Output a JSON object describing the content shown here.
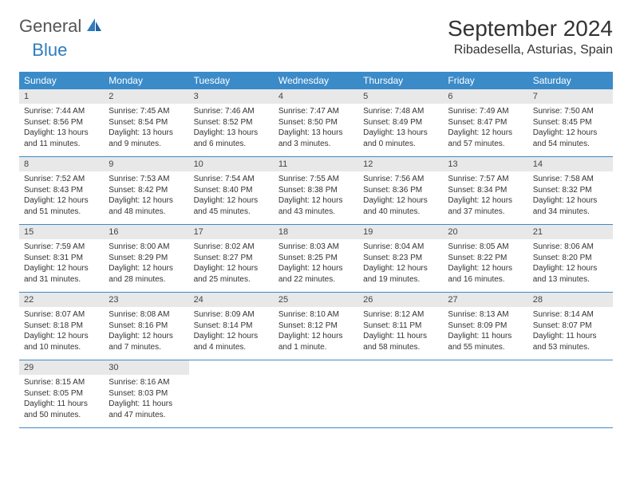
{
  "logo": {
    "general": "General",
    "blue": "Blue"
  },
  "title": "September 2024",
  "location": "Ribadesella, Asturias, Spain",
  "colors": {
    "header_bg": "#3b8bc9",
    "header_text": "#ffffff",
    "daynum_bg": "#e8e8e8",
    "text": "#333333",
    "logo_gray": "#555555",
    "logo_blue": "#2e7cc0",
    "row_border": "#3b8bc9"
  },
  "day_headers": [
    "Sunday",
    "Monday",
    "Tuesday",
    "Wednesday",
    "Thursday",
    "Friday",
    "Saturday"
  ],
  "weeks": [
    [
      {
        "n": "1",
        "sr": "7:44 AM",
        "ss": "8:56 PM",
        "dl": "13 hours and 11 minutes."
      },
      {
        "n": "2",
        "sr": "7:45 AM",
        "ss": "8:54 PM",
        "dl": "13 hours and 9 minutes."
      },
      {
        "n": "3",
        "sr": "7:46 AM",
        "ss": "8:52 PM",
        "dl": "13 hours and 6 minutes."
      },
      {
        "n": "4",
        "sr": "7:47 AM",
        "ss": "8:50 PM",
        "dl": "13 hours and 3 minutes."
      },
      {
        "n": "5",
        "sr": "7:48 AM",
        "ss": "8:49 PM",
        "dl": "13 hours and 0 minutes."
      },
      {
        "n": "6",
        "sr": "7:49 AM",
        "ss": "8:47 PM",
        "dl": "12 hours and 57 minutes."
      },
      {
        "n": "7",
        "sr": "7:50 AM",
        "ss": "8:45 PM",
        "dl": "12 hours and 54 minutes."
      }
    ],
    [
      {
        "n": "8",
        "sr": "7:52 AM",
        "ss": "8:43 PM",
        "dl": "12 hours and 51 minutes."
      },
      {
        "n": "9",
        "sr": "7:53 AM",
        "ss": "8:42 PM",
        "dl": "12 hours and 48 minutes."
      },
      {
        "n": "10",
        "sr": "7:54 AM",
        "ss": "8:40 PM",
        "dl": "12 hours and 45 minutes."
      },
      {
        "n": "11",
        "sr": "7:55 AM",
        "ss": "8:38 PM",
        "dl": "12 hours and 43 minutes."
      },
      {
        "n": "12",
        "sr": "7:56 AM",
        "ss": "8:36 PM",
        "dl": "12 hours and 40 minutes."
      },
      {
        "n": "13",
        "sr": "7:57 AM",
        "ss": "8:34 PM",
        "dl": "12 hours and 37 minutes."
      },
      {
        "n": "14",
        "sr": "7:58 AM",
        "ss": "8:32 PM",
        "dl": "12 hours and 34 minutes."
      }
    ],
    [
      {
        "n": "15",
        "sr": "7:59 AM",
        "ss": "8:31 PM",
        "dl": "12 hours and 31 minutes."
      },
      {
        "n": "16",
        "sr": "8:00 AM",
        "ss": "8:29 PM",
        "dl": "12 hours and 28 minutes."
      },
      {
        "n": "17",
        "sr": "8:02 AM",
        "ss": "8:27 PM",
        "dl": "12 hours and 25 minutes."
      },
      {
        "n": "18",
        "sr": "8:03 AM",
        "ss": "8:25 PM",
        "dl": "12 hours and 22 minutes."
      },
      {
        "n": "19",
        "sr": "8:04 AM",
        "ss": "8:23 PM",
        "dl": "12 hours and 19 minutes."
      },
      {
        "n": "20",
        "sr": "8:05 AM",
        "ss": "8:22 PM",
        "dl": "12 hours and 16 minutes."
      },
      {
        "n": "21",
        "sr": "8:06 AM",
        "ss": "8:20 PM",
        "dl": "12 hours and 13 minutes."
      }
    ],
    [
      {
        "n": "22",
        "sr": "8:07 AM",
        "ss": "8:18 PM",
        "dl": "12 hours and 10 minutes."
      },
      {
        "n": "23",
        "sr": "8:08 AM",
        "ss": "8:16 PM",
        "dl": "12 hours and 7 minutes."
      },
      {
        "n": "24",
        "sr": "8:09 AM",
        "ss": "8:14 PM",
        "dl": "12 hours and 4 minutes."
      },
      {
        "n": "25",
        "sr": "8:10 AM",
        "ss": "8:12 PM",
        "dl": "12 hours and 1 minute."
      },
      {
        "n": "26",
        "sr": "8:12 AM",
        "ss": "8:11 PM",
        "dl": "11 hours and 58 minutes."
      },
      {
        "n": "27",
        "sr": "8:13 AM",
        "ss": "8:09 PM",
        "dl": "11 hours and 55 minutes."
      },
      {
        "n": "28",
        "sr": "8:14 AM",
        "ss": "8:07 PM",
        "dl": "11 hours and 53 minutes."
      }
    ],
    [
      {
        "n": "29",
        "sr": "8:15 AM",
        "ss": "8:05 PM",
        "dl": "11 hours and 50 minutes."
      },
      {
        "n": "30",
        "sr": "8:16 AM",
        "ss": "8:03 PM",
        "dl": "11 hours and 47 minutes."
      },
      null,
      null,
      null,
      null,
      null
    ]
  ],
  "labels": {
    "sunrise": "Sunrise: ",
    "sunset": "Sunset: ",
    "daylight": "Daylight: "
  }
}
